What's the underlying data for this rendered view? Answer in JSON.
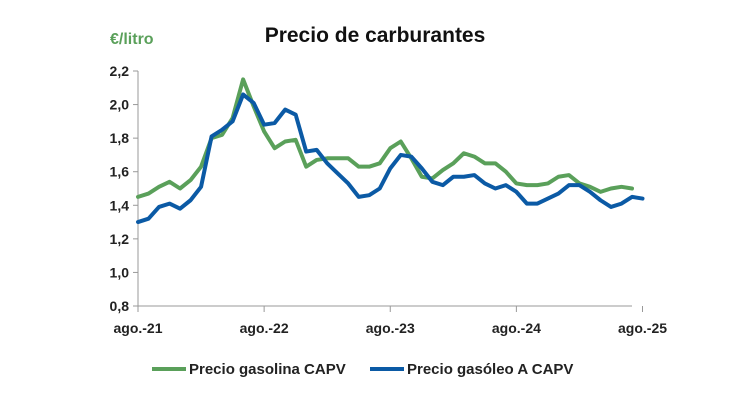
{
  "chart_data": {
    "type": "line",
    "title": "Precio de carburantes",
    "unit_label": "€/litro",
    "ylim": [
      0.8,
      2.2
    ],
    "yticks": [
      0.8,
      1.0,
      1.2,
      1.4,
      1.6,
      1.8,
      2.0,
      2.2
    ],
    "ytick_labels": [
      "0,8",
      "1,0",
      "1,2",
      "1,4",
      "1,6",
      "1,8",
      "2,0",
      "2,2"
    ],
    "x_start": "ago.-21",
    "x_tick_labels": [
      "ago.-21",
      "ago.-22",
      "ago.-23",
      "ago.-24",
      "ago.-25"
    ],
    "x_tick_index": [
      0,
      12,
      24,
      36,
      48
    ],
    "legend_position": "bottom",
    "series": [
      {
        "name": "Precio gasolina CAPV",
        "color": "#5aa05a",
        "values": [
          1.45,
          1.47,
          1.51,
          1.54,
          1.5,
          1.55,
          1.63,
          1.8,
          1.82,
          1.92,
          2.15,
          1.99,
          1.84,
          1.74,
          1.78,
          1.79,
          1.63,
          1.67,
          1.68,
          1.68,
          1.68,
          1.63,
          1.63,
          1.65,
          1.74,
          1.78,
          1.68,
          1.57,
          1.56,
          1.61,
          1.65,
          1.71,
          1.69,
          1.65,
          1.65,
          1.6,
          1.53,
          1.52,
          1.52,
          1.53,
          1.57,
          1.58,
          1.53,
          1.51,
          1.48,
          1.5,
          1.51,
          1.5
        ]
      },
      {
        "name": "Precio gasóleo A CAPV",
        "color": "#0b5aa5",
        "values": [
          1.3,
          1.32,
          1.39,
          1.41,
          1.38,
          1.43,
          1.51,
          1.81,
          1.85,
          1.9,
          2.06,
          2.01,
          1.88,
          1.89,
          1.97,
          1.94,
          1.72,
          1.73,
          1.65,
          1.59,
          1.53,
          1.45,
          1.46,
          1.5,
          1.62,
          1.7,
          1.69,
          1.62,
          1.54,
          1.52,
          1.57,
          1.57,
          1.58,
          1.53,
          1.5,
          1.52,
          1.48,
          1.41,
          1.41,
          1.44,
          1.47,
          1.52,
          1.52,
          1.48,
          1.43,
          1.39,
          1.41,
          1.45,
          1.44
        ]
      }
    ]
  }
}
